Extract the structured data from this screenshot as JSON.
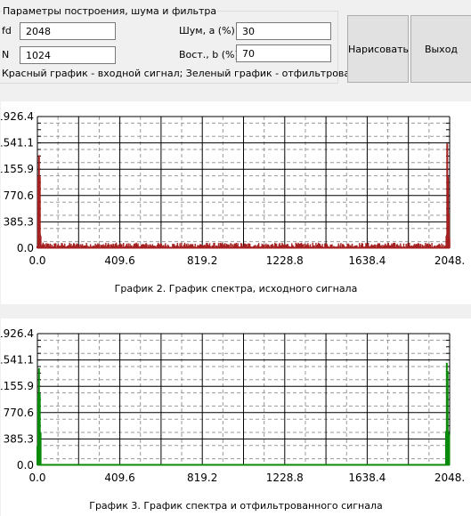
{
  "params": {
    "group_title": "Параметры построения, шума и фильтра",
    "fd_label": "fd",
    "fd_value": "2048",
    "n_label": "N",
    "n_value": "1024",
    "noise_label": "Шум, a (%)",
    "noise_value": "30",
    "recovery_label": "Вост., b (%)",
    "recovery_value": "70",
    "legend_text": "Красный график - входной сигнал; Зеленый график - отфильтрованный"
  },
  "buttons": {
    "draw_label": "Нарисовать",
    "exit_label": "Выход"
  },
  "chart_data": [
    {
      "type": "bar",
      "title": "График 2. График спектра, исходного сигнала",
      "color": "#a52020",
      "xlim": [
        0,
        2048
      ],
      "ylim": [
        0,
        1926.4
      ],
      "x_tick_labels": [
        "0.0",
        "409.6",
        "819.2",
        "1228.8",
        "1638.4",
        "2048."
      ],
      "y_tick_labels": [
        "0.0",
        "385.3",
        "770.6",
        "1155.9",
        "1541.1",
        "1926.4"
      ],
      "grid": true,
      "peaks": [
        {
          "x": 0,
          "y": 30
        },
        {
          "x": 4,
          "y": 1050
        },
        {
          "x": 8,
          "y": 1360
        },
        {
          "x": 12,
          "y": 1050
        },
        {
          "x": 16,
          "y": 180
        },
        {
          "x": 2032,
          "y": 180
        },
        {
          "x": 2036,
          "y": 1530
        },
        {
          "x": 2040,
          "y": 1050
        },
        {
          "x": 2044,
          "y": 500
        },
        {
          "x": 2047,
          "y": 150
        }
      ],
      "noise_floor": 40,
      "noise_amplitude": 70
    },
    {
      "type": "bar",
      "title": "График 3. График спектра и отфильтрованного сигнала",
      "color": "#0b8a0b",
      "xlim": [
        0,
        2048
      ],
      "ylim": [
        0,
        1926.4
      ],
      "x_tick_labels": [
        "0.0",
        "409.6",
        "819.2",
        "1228.8",
        "1638.4",
        "2048."
      ],
      "y_tick_labels": [
        "0.0",
        "385.3",
        "770.6",
        "1155.9",
        "1541.1",
        "1926.4"
      ],
      "grid": true,
      "peaks": [
        {
          "x": 0,
          "y": 280
        },
        {
          "x": 4,
          "y": 1050
        },
        {
          "x": 8,
          "y": 1420
        },
        {
          "x": 12,
          "y": 1050
        },
        {
          "x": 16,
          "y": 480
        },
        {
          "x": 2030,
          "y": 500
        },
        {
          "x": 2034,
          "y": 1500
        },
        {
          "x": 2038,
          "y": 1380
        },
        {
          "x": 2042,
          "y": 500
        },
        {
          "x": 2046,
          "y": 450
        }
      ],
      "noise_floor": 0,
      "noise_amplitude": 0
    }
  ]
}
